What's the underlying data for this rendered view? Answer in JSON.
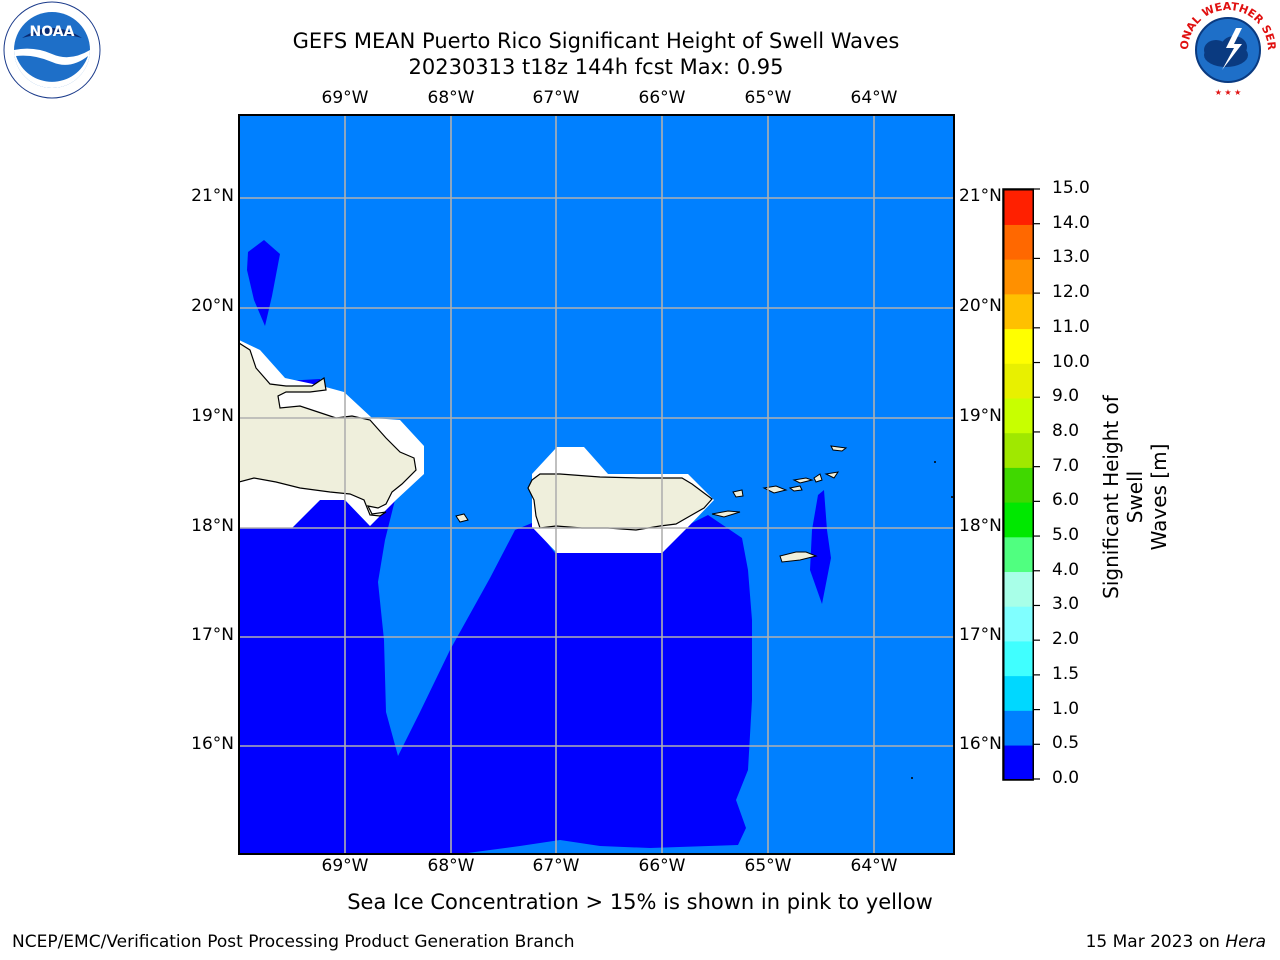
{
  "title": {
    "line1": "GEFS MEAN Puerto Rico Significant Height of Swell Waves",
    "line2": "20230313 t18z 144h fcst   Max: 0.95"
  },
  "logos": {
    "left": "noaa-logo",
    "right": "national-weather-service-logo",
    "left_text": "NOAA",
    "right_text": "NATIONAL WEATHER SERVICE"
  },
  "map": {
    "lon_labels": [
      "69°W",
      "68°W",
      "67°W",
      "66°W",
      "65°W",
      "64°W"
    ],
    "lat_labels": [
      "21°N",
      "20°N",
      "19°N",
      "18°N",
      "17°N",
      "16°N"
    ],
    "lon_range": [
      -70.0,
      -63.25
    ],
    "lat_range": [
      15.0,
      21.75
    ],
    "grid": true,
    "land_color": "#efefdc",
    "ocean_low_color": "#0000ff",
    "ocean_mid_color": "#0080ff"
  },
  "colorbar": {
    "title": "Significant Height of Swell Waves [m]",
    "title_line1": "Significant Height of Swell",
    "title_line2": "Waves [m]",
    "ticks": [
      "15.0",
      "14.0",
      "13.0",
      "12.0",
      "11.0",
      "10.0",
      "9.0",
      "8.0",
      "7.0",
      "6.0",
      "5.0",
      "4.0",
      "3.0",
      "2.0",
      "1.5",
      "1.0",
      "0.5",
      "0.0"
    ],
    "levels": [
      0.0,
      0.5,
      1.0,
      1.5,
      2.0,
      3.0,
      4.0,
      5.0,
      6.0,
      7.0,
      8.0,
      9.0,
      10.0,
      11.0,
      12.0,
      13.0,
      14.0,
      15.0
    ],
    "colors": [
      "#0000ff",
      "#0080ff",
      "#00d8ff",
      "#40ffff",
      "#80ffff",
      "#a8ffe8",
      "#50ff80",
      "#00e800",
      "#40d800",
      "#a0e800",
      "#c8ff00",
      "#e8f000",
      "#ffff00",
      "#ffc000",
      "#ff9000",
      "#ff6800",
      "#ff2000",
      "#ff0000"
    ]
  },
  "note": "Sea Ice Concentration > 15% is shown in pink to yellow",
  "footer": {
    "left": "NCEP/EMC/Verification Post Processing Product Generation Branch",
    "right_prefix": "15 Mar 2023 on ",
    "right_italic": "Hera"
  }
}
